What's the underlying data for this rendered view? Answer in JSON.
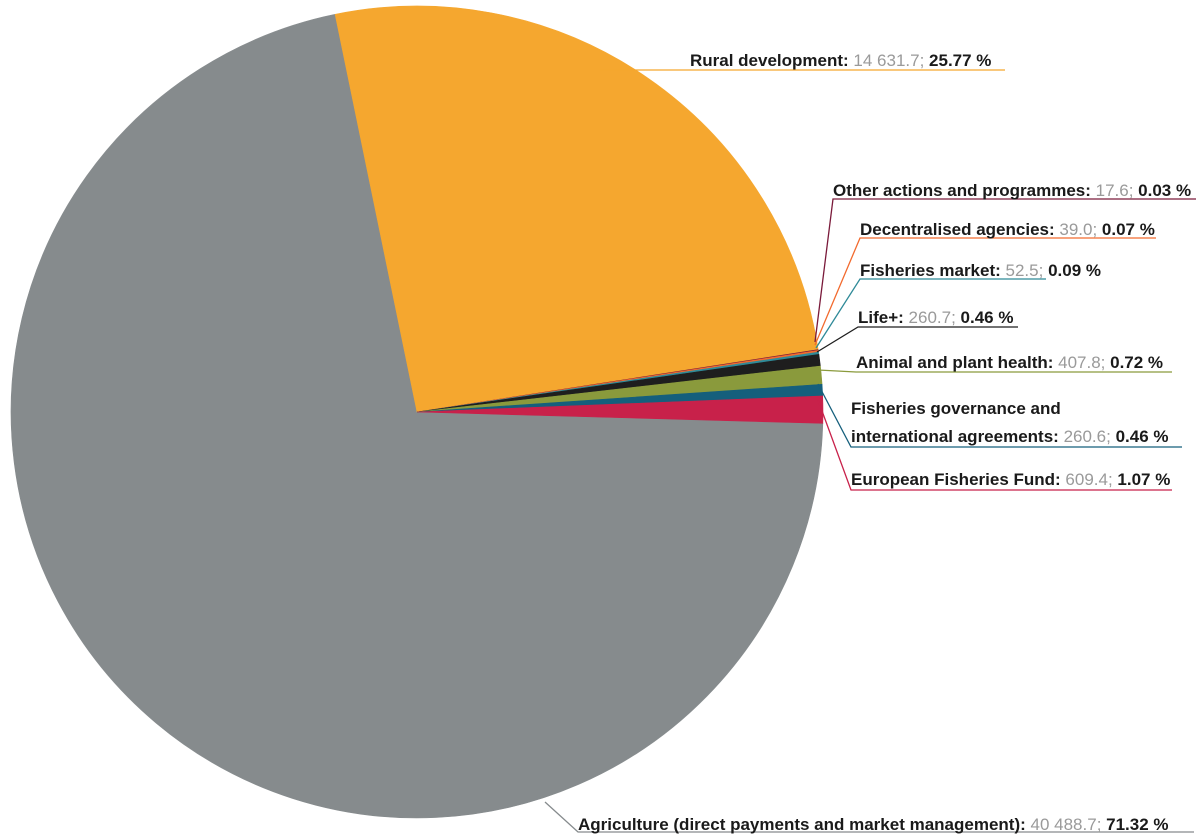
{
  "chart_data": {
    "type": "pie",
    "slices": [
      {
        "name": "Agriculture (direct payments and market management):",
        "value": 40488.7,
        "value_label": "40 488.7;",
        "percent_label": "71.32 %",
        "color": "#868b8d"
      },
      {
        "name": "Rural development:",
        "value": 14631.7,
        "value_label": "14 631.7;",
        "percent_label": "25.77 %",
        "color": "#f5a72f"
      },
      {
        "name": "Other actions and programmes:",
        "value": 17.6,
        "value_label": "17.6;",
        "percent_label": "0.03 %",
        "color": "#7a1a3a"
      },
      {
        "name": "Decentralised agencies:",
        "value": 39.0,
        "value_label": "39.0;",
        "percent_label": "0.07 %",
        "color": "#f26a2e"
      },
      {
        "name": "Fisheries market:",
        "value": 52.5,
        "value_label": "52.5;",
        "percent_label": "0.09 %",
        "color": "#2f8a98"
      },
      {
        "name": "Life+:",
        "value": 260.7,
        "value_label": "260.7;",
        "percent_label": "0.46 %",
        "color": "#1e1e1e"
      },
      {
        "name": "Animal and plant health:",
        "value": 407.8,
        "value_label": "407.8;",
        "percent_label": "0.72 %",
        "color": "#8a9a3c"
      },
      {
        "name_lines": [
          "Fisheries governance and",
          "international agreements:"
        ],
        "value": 260.6,
        "value_label": "260.6;",
        "percent_label": "0.46 %",
        "color": "#155f7c"
      },
      {
        "name": "European Fisheries Fund:",
        "value": 609.4,
        "value_label": "609.4;",
        "percent_label": "1.07 %",
        "color": "#c8214a"
      }
    ]
  }
}
